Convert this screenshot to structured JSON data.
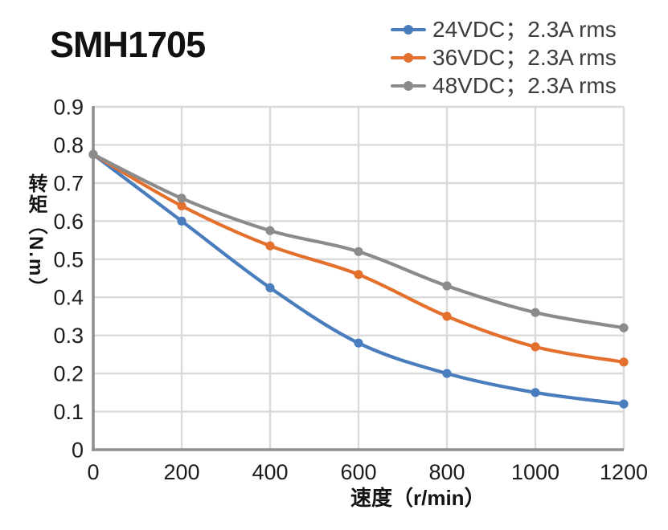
{
  "title": "SMH1705",
  "legend": {
    "items": [
      {
        "label": "24VDC；2.3A rms",
        "color": "#4A7DBE"
      },
      {
        "label": "36VDC；2.3A rms",
        "color": "#E4702D"
      },
      {
        "label": "48VDC；2.3A rms",
        "color": "#8B8B8B"
      }
    ]
  },
  "chart_data": {
    "type": "line",
    "title": "SMH1705",
    "xlabel": "速度（r/min）",
    "ylabel": "转矩（N.m）",
    "x": [
      0,
      200,
      400,
      600,
      800,
      1000,
      1200
    ],
    "series": [
      {
        "name": "24VDC；2.3A rms",
        "color": "#4A7DBE",
        "values": [
          0.775,
          0.6,
          0.425,
          0.28,
          0.2,
          0.15,
          0.12
        ]
      },
      {
        "name": "36VDC；2.3A rms",
        "color": "#E4702D",
        "values": [
          0.775,
          0.64,
          0.535,
          0.46,
          0.35,
          0.27,
          0.23
        ]
      },
      {
        "name": "48VDC；2.3A rms",
        "color": "#8B8B8B",
        "values": [
          0.775,
          0.66,
          0.575,
          0.52,
          0.43,
          0.36,
          0.32
        ]
      }
    ],
    "xlim": [
      0,
      1200
    ],
    "ylim": [
      0,
      0.9
    ],
    "xticks": [
      "0",
      "200",
      "400",
      "600",
      "800",
      "1000",
      "1200"
    ],
    "yticks": [
      "0.9",
      "0.8",
      "0.7",
      "0.6",
      "0.5",
      "0.4",
      "0.3",
      "0.2",
      "0.1",
      "0"
    ],
    "grid": true,
    "smooth_lines": true,
    "legend_position": "top-right"
  },
  "colors": {
    "gridline": "#DADADA",
    "axis": "#8F8F8F",
    "tick_label": "#1C1C1C",
    "title_text": "#111111",
    "legend_text": "#3D3D3D",
    "background": "#FFFFFF"
  }
}
